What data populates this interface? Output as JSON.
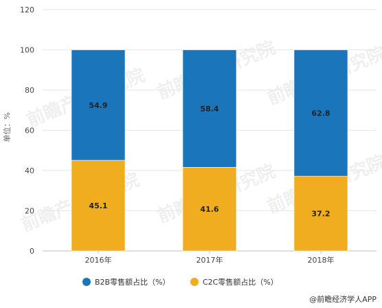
{
  "chart_data": {
    "type": "bar",
    "stacked": true,
    "categories": [
      "2016年",
      "2017年",
      "2018年"
    ],
    "series": [
      {
        "name": "C2C零售额占比（%）",
        "values": [
          45.1,
          41.6,
          37.2
        ],
        "color": "#f0ad1f"
      },
      {
        "name": "B2B零售额占比（%）",
        "values": [
          54.9,
          58.4,
          62.8
        ],
        "color": "#1a75bb"
      }
    ],
    "ylabel": "单位：%",
    "ylim": [
      0,
      120
    ],
    "yticks": [
      0,
      20,
      40,
      60,
      80,
      100,
      120
    ],
    "grid": true,
    "legend_position": "bottom",
    "legend_order": [
      1,
      0
    ]
  },
  "watermark": "前瞻产业研究院",
  "source": "@前瞻经济学人APP"
}
